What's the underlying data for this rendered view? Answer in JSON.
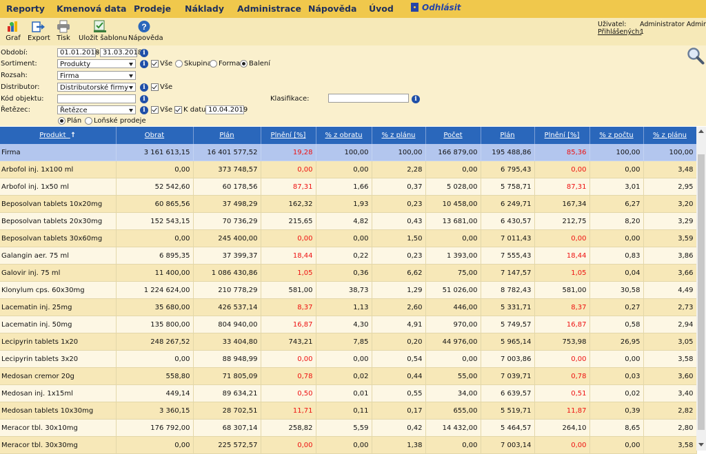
{
  "menu": {
    "items": [
      "Reporty",
      "Kmenová data",
      "Prodeje",
      "Náklady",
      "Administrace",
      "Nápověda",
      "Úvod"
    ],
    "logout_label": "Odhlásit"
  },
  "toolbar": {
    "buttons": [
      {
        "label": "Graf",
        "icon": "chart-icon"
      },
      {
        "label": "Export",
        "icon": "export-icon"
      },
      {
        "label": "Tisk",
        "icon": "printer-icon"
      },
      {
        "label": "Uložit šablonu",
        "icon": "save-template-icon"
      },
      {
        "label": "Nápověda",
        "icon": "help-icon"
      }
    ]
  },
  "user": {
    "user_label": "Uživatel:",
    "user_value": "Administrator Admin",
    "logged_label": "Přihlášených:",
    "logged_value": "1"
  },
  "filters": {
    "period_label": "Období:",
    "period_from": "01.01.2018",
    "period_sep": "-",
    "period_to": "31.03.2018",
    "assortment_label": "Sortiment:",
    "assortment_value": "Produkty",
    "assortment_all": "Vše",
    "opt_group": "Skupina",
    "opt_form": "Forma",
    "opt_pack": "Balení",
    "scope_label": "Rozsah:",
    "scope_value": "Firma",
    "distributor_label": "Distributor:",
    "distributor_value": "Distributorské firmy",
    "distributor_all": "Vše",
    "object_code_label": "Kód objektu:",
    "object_code_value": "",
    "classification_label": "Klasifikace:",
    "classification_value": "",
    "chain_label": "Řetězec:",
    "chain_value": "Řetězce",
    "chain_all": "Vše",
    "as_of_label": "K datu",
    "as_of_value": "10.04.2019",
    "radio_plan": "Plán",
    "radio_last_year": "Loňské prodeje"
  },
  "table": {
    "headers": [
      "Produkt",
      "Obrat",
      "Plán",
      "Plnění [%]",
      "% z obratu",
      "% z plánu",
      "Počet",
      "Plán",
      "Plnění [%]",
      "% z počtu",
      "% z plánu"
    ],
    "sort_indicator": "↑",
    "rows": [
      [
        "Firma",
        "3 161 613,15",
        "16 401 577,52",
        "19,28",
        "100,00",
        "100,00",
        "166 879,00",
        "195 488,86",
        "85,36",
        "100,00",
        "100,00"
      ],
      [
        "Arbofol inj. 1x100 ml",
        "0,00",
        "373 748,57",
        "0,00",
        "0,00",
        "2,28",
        "0,00",
        "6 795,43",
        "0,00",
        "0,00",
        "3,48"
      ],
      [
        "Arbofol inj. 1x50 ml",
        "52 542,60",
        "60 178,56",
        "87,31",
        "1,66",
        "0,37",
        "5 028,00",
        "5 758,71",
        "87,31",
        "3,01",
        "2,95"
      ],
      [
        "Beposolvan tablets 10x20mg",
        "60 865,56",
        "37 498,29",
        "162,32",
        "1,93",
        "0,23",
        "10 458,00",
        "6 249,71",
        "167,34",
        "6,27",
        "3,20"
      ],
      [
        "Beposolvan tablets 20x30mg",
        "152 543,15",
        "70 736,29",
        "215,65",
        "4,82",
        "0,43",
        "13 681,00",
        "6 430,57",
        "212,75",
        "8,20",
        "3,29"
      ],
      [
        "Beposolvan tablets 30x60mg",
        "0,00",
        "245 400,00",
        "0,00",
        "0,00",
        "1,50",
        "0,00",
        "7 011,43",
        "0,00",
        "0,00",
        "3,59"
      ],
      [
        "Galangin aer. 75 ml",
        "6 895,35",
        "37 399,37",
        "18,44",
        "0,22",
        "0,23",
        "1 393,00",
        "7 555,43",
        "18,44",
        "0,83",
        "3,86"
      ],
      [
        "Galovir inj. 75 ml",
        "11 400,00",
        "1 086 430,86",
        "1,05",
        "0,36",
        "6,62",
        "75,00",
        "7 147,57",
        "1,05",
        "0,04",
        "3,66"
      ],
      [
        "Klonylum cps. 60x30mg",
        "1 224 624,00",
        "210 778,29",
        "581,00",
        "38,73",
        "1,29",
        "51 026,00",
        "8 782,43",
        "581,00",
        "30,58",
        "4,49"
      ],
      [
        "Lacematin inj. 25mg",
        "35 680,00",
        "426 537,14",
        "8,37",
        "1,13",
        "2,60",
        "446,00",
        "5 331,71",
        "8,37",
        "0,27",
        "2,73"
      ],
      [
        "Lacematin inj. 50mg",
        "135 800,00",
        "804 940,00",
        "16,87",
        "4,30",
        "4,91",
        "970,00",
        "5 749,57",
        "16,87",
        "0,58",
        "2,94"
      ],
      [
        "Lecipyrin tablets 1x20",
        "248 267,52",
        "33 404,80",
        "743,21",
        "7,85",
        "0,20",
        "44 976,00",
        "5 965,14",
        "753,98",
        "26,95",
        "3,05"
      ],
      [
        "Lecipyrin tablets 3x20",
        "0,00",
        "88 948,99",
        "0,00",
        "0,00",
        "0,54",
        "0,00",
        "7 003,86",
        "0,00",
        "0,00",
        "3,58"
      ],
      [
        "Medosan cremor 20g",
        "558,80",
        "71 805,09",
        "0,78",
        "0,02",
        "0,44",
        "55,00",
        "7 039,71",
        "0,78",
        "0,03",
        "3,60"
      ],
      [
        "Medosan inj. 1x15ml",
        "449,14",
        "89 634,21",
        "0,50",
        "0,01",
        "0,55",
        "34,00",
        "6 639,57",
        "0,51",
        "0,02",
        "3,40"
      ],
      [
        "Medosan tablets 10x30mg",
        "3 360,15",
        "28 702,51",
        "11,71",
        "0,11",
        "0,17",
        "655,00",
        "5 519,71",
        "11,87",
        "0,39",
        "2,82"
      ],
      [
        "Meracor tbl. 30x10mg",
        "176 792,00",
        "68 307,14",
        "258,82",
        "5,59",
        "0,42",
        "14 432,00",
        "5 464,57",
        "264,10",
        "8,65",
        "2,80"
      ],
      [
        "Meracor tbl. 30x30mg",
        "0,00",
        "225 572,57",
        "0,00",
        "0,00",
        "1,38",
        "0,00",
        "7 003,14",
        "0,00",
        "0,00",
        "3,58"
      ]
    ]
  },
  "colors": {
    "menu_bg": "#f0c84c",
    "header_bg": "#2a67bb",
    "total_row_bg": "#b3c6ee",
    "under_plan_text": "#e11111"
  }
}
